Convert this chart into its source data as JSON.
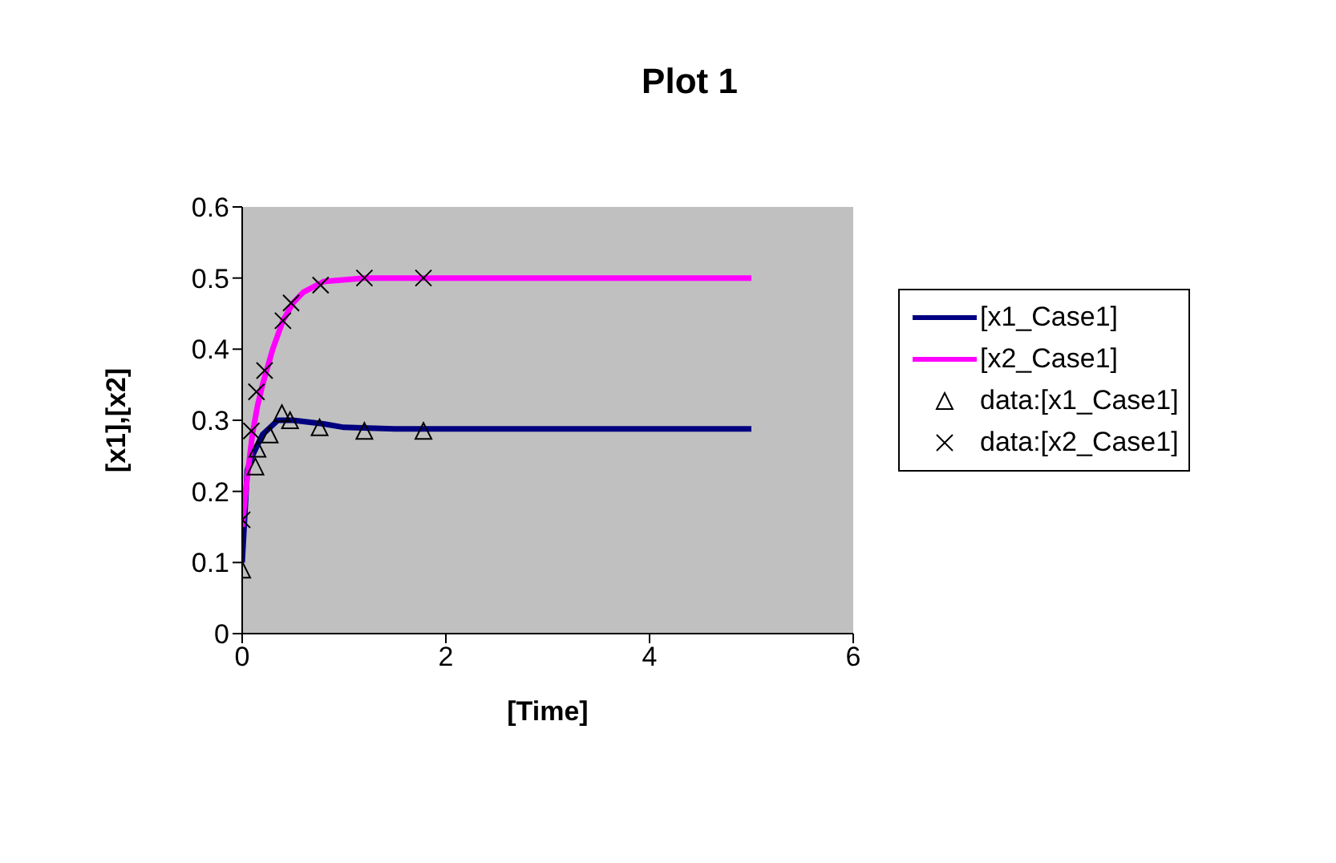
{
  "chart_data": {
    "type": "line",
    "title": "Plot 1",
    "xlabel": "[Time]",
    "ylabel": "[x1],[x2]",
    "xlim": [
      0,
      6
    ],
    "xticks": [
      0,
      2,
      4,
      6
    ],
    "ylim": [
      0,
      0.6
    ],
    "yticks": [
      0,
      0.1,
      0.2,
      0.3,
      0.4,
      0.5,
      0.6
    ],
    "grid": false,
    "legend": "right",
    "series": [
      {
        "name": "[x1_Case1]",
        "marker": "none",
        "color": "#000080",
        "x": [
          0,
          0.05,
          0.1,
          0.2,
          0.35,
          0.5,
          0.8,
          1,
          1.5,
          5
        ],
        "values": [
          0.1,
          0.23,
          0.25,
          0.28,
          0.3,
          0.3,
          0.295,
          0.29,
          0.288,
          0.288
        ]
      },
      {
        "name": "[x2_Case1]",
        "marker": "none",
        "color": "#ff00ff",
        "x": [
          0,
          0.05,
          0.1,
          0.15,
          0.2,
          0.3,
          0.4,
          0.5,
          0.6,
          0.8,
          1.2,
          5
        ],
        "values": [
          0.15,
          0.22,
          0.28,
          0.32,
          0.35,
          0.4,
          0.44,
          0.465,
          0.48,
          0.495,
          0.5,
          0.5
        ]
      },
      {
        "name": "data:[x1_Case1]",
        "type": "scatter",
        "marker": "triangle",
        "color": "#000000",
        "x": [
          0,
          0.13,
          0.15,
          0.27,
          0.39,
          0.47,
          0.76,
          1.2,
          1.78
        ],
        "values": [
          0.09,
          0.235,
          0.26,
          0.28,
          0.31,
          0.3,
          0.29,
          0.285,
          0.285
        ]
      },
      {
        "name": "data:[x2_Case1]",
        "type": "scatter",
        "marker": "cross",
        "color": "#000000",
        "x": [
          0,
          0.09,
          0.14,
          0.22,
          0.4,
          0.48,
          0.77,
          1.2,
          1.78
        ],
        "values": [
          0.16,
          0.285,
          0.34,
          0.37,
          0.44,
          0.465,
          0.49,
          0.5,
          0.5
        ]
      }
    ]
  }
}
